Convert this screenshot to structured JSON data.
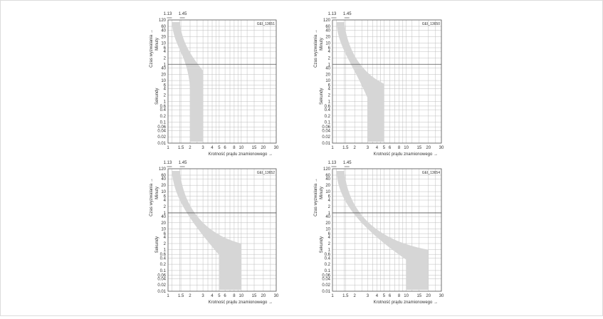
{
  "palette": {
    "band": "#d6d6d6",
    "grid": "#bdbdbd",
    "axis": "#555555",
    "frame_border": "#dcdcdc"
  },
  "common": {
    "y_axis_title": "Czas wyzwalania",
    "minutes_label": "Minuty",
    "seconds_label": "Sekundy",
    "x_axis_title": "Krotność prądu znamionowego",
    "marker_left": "1.13",
    "marker_right": "1.45",
    "x_ticks": [
      "1",
      "1.5",
      "2",
      "3",
      "4",
      "5",
      "6",
      "8",
      "10",
      "15",
      "20",
      "30"
    ],
    "y_ticks_minutes": [
      "120",
      "60",
      "40",
      "20",
      "10",
      "6",
      "4",
      "2",
      "1"
    ],
    "y_ticks_seconds": [
      "40",
      "20",
      "10",
      "6",
      "4",
      "2",
      "1",
      "0.6",
      "0.4",
      "0.2",
      "0.1",
      "0.06",
      "0.04",
      "0.02",
      "0.01"
    ]
  },
  "chart_data": [
    {
      "type": "area",
      "id_label": "GEI_13651",
      "x_scale": "log",
      "y_scale": "log",
      "xlim": [
        1,
        30
      ],
      "y_minutes": [
        1,
        120
      ],
      "y_seconds": [
        0.01,
        60
      ],
      "band": {
        "curve_x_end": 3,
        "curve_y_sec": 30,
        "drop_x_start": 2,
        "drop_x_end": 3
      }
    },
    {
      "type": "area",
      "id_label": "GEI_13650",
      "x_scale": "log",
      "y_scale": "log",
      "xlim": [
        1,
        30
      ],
      "y_minutes": [
        1,
        120
      ],
      "y_seconds": [
        0.01,
        60
      ],
      "band": {
        "curve_x_end": 5,
        "curve_y_sec": 7,
        "drop_x_start": 3,
        "drop_x_end": 5
      }
    },
    {
      "type": "area",
      "id_label": "GEI_13652",
      "x_scale": "log",
      "y_scale": "log",
      "xlim": [
        1,
        30
      ],
      "y_minutes": [
        1,
        120
      ],
      "y_seconds": [
        0.01,
        60
      ],
      "band": {
        "curve_x_end": 10,
        "curve_y_sec": 2,
        "drop_x_start": 5,
        "drop_x_end": 10
      }
    },
    {
      "type": "area",
      "id_label": "GEI_13654",
      "x_scale": "log",
      "y_scale": "log",
      "xlim": [
        1,
        30
      ],
      "y_minutes": [
        1,
        120
      ],
      "y_seconds": [
        0.01,
        60
      ],
      "band": {
        "curve_x_end": 20,
        "curve_y_sec": 1,
        "drop_x_start": 10,
        "drop_x_end": 20
      }
    }
  ]
}
